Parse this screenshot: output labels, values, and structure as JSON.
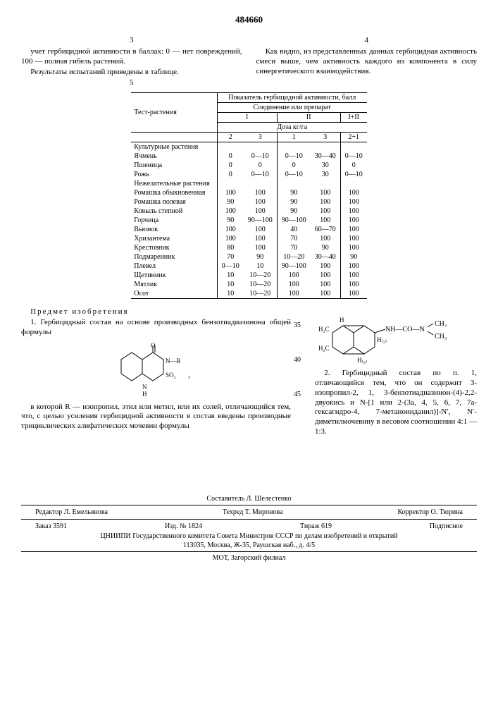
{
  "doc_number": "484660",
  "col_left_num": "3",
  "col_right_num": "4",
  "left_paras": [
    "учет гербицидной активности в баллах: 0 — нет повреждений, 100 — полная гибель растений.",
    "Результаты испытаний приведены в таблице."
  ],
  "right_para": "Как видно, из представленных данных гербицидная активность смеси выше, чем активность каждого из компонента в силу синергетического взаимодействия.",
  "table_num_marker": "5",
  "tbl": {
    "head_main": "Показатель гербицидной активности, балл",
    "head_sub": "Соединение или препарат",
    "head_test": "Тест-растения",
    "head_I": "I",
    "head_II": "II",
    "head_mix": "I+II",
    "head_dose": "Доза кг/га",
    "dose_cols": [
      "2",
      "3",
      "1",
      "3",
      "2+1"
    ],
    "group1": "Культурные растения",
    "group2": "Нежелательные растения",
    "rows1": [
      {
        "n": "Ячмень",
        "v": [
          "0",
          "0—10",
          "0—10",
          "30—40",
          "0—10"
        ]
      },
      {
        "n": "Пшеница",
        "v": [
          "0",
          "0",
          "0",
          "30",
          "0"
        ]
      },
      {
        "n": "Рожь",
        "v": [
          "0",
          "0—10",
          "0—10",
          "30",
          "0—10"
        ]
      }
    ],
    "rows2": [
      {
        "n": "Ромашка обыкновенная",
        "v": [
          "100",
          "100",
          "90",
          "100",
          "100"
        ]
      },
      {
        "n": "Ромашка полевая",
        "v": [
          "90",
          "100",
          "90",
          "100",
          "100"
        ]
      },
      {
        "n": "Ковыль степной",
        "v": [
          "100",
          "100",
          "90",
          "100",
          "100"
        ]
      },
      {
        "n": "Горчица",
        "v": [
          "90",
          "90—100",
          "90—100",
          "100",
          "100"
        ]
      },
      {
        "n": "Вьюнок",
        "v": [
          "100",
          "100",
          "40",
          "60—70",
          "100"
        ]
      },
      {
        "n": "Хризантема",
        "v": [
          "100",
          "100",
          "70",
          "100",
          "100"
        ]
      },
      {
        "n": "Крестовник",
        "v": [
          "80",
          "100",
          "70",
          "90",
          "100"
        ]
      },
      {
        "n": "Подмаренник",
        "v": [
          "70",
          "90",
          "10—20",
          "30—40",
          "90"
        ]
      },
      {
        "n": "Плевел",
        "v": [
          "0—10",
          "10",
          "90—100",
          "100",
          "100"
        ]
      },
      {
        "n": "Щетинник",
        "v": [
          "10",
          "10—20",
          "100",
          "100",
          "100"
        ]
      },
      {
        "n": "Мятлик",
        "v": [
          "10",
          "10—20",
          "100",
          "100",
          "100"
        ]
      },
      {
        "n": "Осот",
        "v": [
          "10",
          "10—20",
          "100",
          "100",
          "100"
        ]
      }
    ]
  },
  "invention_heading": "Предмет изобретения",
  "claim1_a": "1. Гербицидный состав на основе производных бензотиадиазинона общей формулы",
  "claim1_b": "в которой R — изопропил, этил или метил, или их солей, отличающийся тем, что, с целью усиления гербицидной активности в состав введены производные трициклических алифатических мочевин формулы",
  "claim2": "2. Гербицидный состав по п. 1, отличающийся тем, что он содержит 3-изопропил-2, 1, 3-бензотиадиазинон-(4)-2,2-двуокись и N-[1 или 2-(3a, 4, 5, 6, 7, 7a-гексагидро-4, 7-метаноинданил)]-N′, N′-диметилмочевину в весовом соотношении 4:1 — 1:3.",
  "line_markers": {
    "m35": "35",
    "m40": "40",
    "m45": "45"
  },
  "footer": {
    "compiled": "Составитель Л. Шелестенко",
    "editor": "Редактор Л. Емельянова",
    "tech": "Техред Т. Миронова",
    "corr": "Корректор О. Тюрина",
    "order": "Заказ 3591",
    "izd": "Изд. № 1824",
    "tirazh": "Тираж 619",
    "podp": "Подписное",
    "org": "ЦНИИПИ Государственного комитета Совета Министров СССР по делам изобретений и открытий",
    "addr": "113035, Москва, Ж-35, Раушская наб., д. 4/5",
    "print": "МОТ, Загорский филиал"
  }
}
